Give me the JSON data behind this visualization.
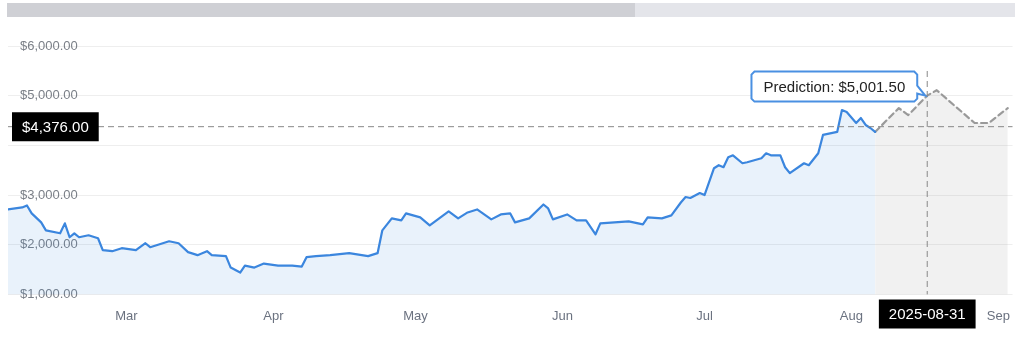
{
  "chart_data": {
    "type": "area",
    "xlim": [
      "2025-02-18",
      "2025-09-18"
    ],
    "xticks": [
      {
        "value": "2025-03-15",
        "label": "Mar"
      },
      {
        "value": "2025-04-15",
        "label": "Apr"
      },
      {
        "value": "2025-05-15",
        "label": "May"
      },
      {
        "value": "2025-06-15",
        "label": "Jun"
      },
      {
        "value": "2025-07-15",
        "label": "Jul"
      },
      {
        "value": "2025-08-15",
        "label": "Aug"
      },
      {
        "value": "2025-09-15",
        "label": "Sep"
      }
    ],
    "ylim": [
      1000,
      6000
    ],
    "yticks": [
      {
        "value": 1000,
        "label": "$1,000.00"
      },
      {
        "value": 2000,
        "label": "$2,000.00"
      },
      {
        "value": 3000,
        "label": "$3,000.00"
      },
      {
        "value": 4000,
        "label": null
      },
      {
        "value": 5000,
        "label": "$5,000.00"
      },
      {
        "value": 6000,
        "label": "$6,000.00"
      }
    ],
    "grid": "y",
    "legend": false,
    "marker": "none",
    "series": [
      {
        "color": "#3b86de",
        "line_style": "solid",
        "x": [
          "2025-02-18",
          "2025-02-21",
          "2025-02-22",
          "2025-02-23",
          "2025-02-25",
          "2025-02-26",
          "2025-03-01",
          "2025-03-02",
          "2025-03-03",
          "2025-03-04",
          "2025-03-05",
          "2025-03-07",
          "2025-03-09",
          "2025-03-10",
          "2025-03-12",
          "2025-03-14",
          "2025-03-17",
          "2025-03-19",
          "2025-03-20",
          "2025-03-24",
          "2025-03-26",
          "2025-03-28",
          "2025-03-30",
          "2025-04-01",
          "2025-04-02",
          "2025-04-05",
          "2025-04-06",
          "2025-04-08",
          "2025-04-09",
          "2025-04-11",
          "2025-04-13",
          "2025-04-16",
          "2025-04-19",
          "2025-04-21",
          "2025-04-22",
          "2025-04-24",
          "2025-04-27",
          "2025-05-01",
          "2025-05-05",
          "2025-05-07",
          "2025-05-08",
          "2025-05-10",
          "2025-05-12",
          "2025-05-13",
          "2025-05-16",
          "2025-05-18",
          "2025-05-20",
          "2025-05-22",
          "2025-05-24",
          "2025-05-26",
          "2025-05-28",
          "2025-05-31",
          "2025-06-02",
          "2025-06-04",
          "2025-06-05",
          "2025-06-08",
          "2025-06-11",
          "2025-06-12",
          "2025-06-13",
          "2025-06-16",
          "2025-06-18",
          "2025-06-20",
          "2025-06-22",
          "2025-06-23",
          "2025-06-26",
          "2025-06-29",
          "2025-07-02",
          "2025-07-03",
          "2025-07-06",
          "2025-07-08",
          "2025-07-10",
          "2025-07-11",
          "2025-07-12",
          "2025-07-14",
          "2025-07-15",
          "2025-07-17",
          "2025-07-18",
          "2025-07-19",
          "2025-07-20",
          "2025-07-21",
          "2025-07-23",
          "2025-07-24",
          "2025-07-27",
          "2025-07-28",
          "2025-07-29",
          "2025-07-31",
          "2025-08-01",
          "2025-08-02",
          "2025-08-05",
          "2025-08-06",
          "2025-08-08",
          "2025-08-09",
          "2025-08-11",
          "2025-08-12",
          "2025-08-13",
          "2025-08-14",
          "2025-08-16",
          "2025-08-17",
          "2025-08-18",
          "2025-08-19",
          "2025-08-20"
        ],
        "values": [
          2710,
          2750,
          2790,
          2630,
          2450,
          2290,
          2230,
          2430,
          2150,
          2230,
          2150,
          2190,
          2130,
          1890,
          1870,
          1930,
          1890,
          2030,
          1950,
          2070,
          2030,
          1850,
          1790,
          1870,
          1790,
          1770,
          1540,
          1440,
          1580,
          1540,
          1620,
          1580,
          1580,
          1560,
          1750,
          1770,
          1790,
          1830,
          1770,
          1830,
          2290,
          2530,
          2490,
          2630,
          2550,
          2390,
          2530,
          2670,
          2530,
          2650,
          2710,
          2510,
          2610,
          2630,
          2450,
          2530,
          2810,
          2730,
          2510,
          2610,
          2490,
          2490,
          2210,
          2430,
          2450,
          2470,
          2410,
          2550,
          2530,
          2590,
          2850,
          2960,
          2940,
          3040,
          3000,
          3540,
          3600,
          3560,
          3760,
          3800,
          3640,
          3660,
          3740,
          3840,
          3800,
          3800,
          3560,
          3440,
          3640,
          3600,
          3840,
          4210,
          4250,
          4270,
          4710,
          4670,
          4450,
          4550,
          4410,
          4350,
          4270
        ]
      },
      {
        "color": "#9a9a9a",
        "line_style": "dashed",
        "x": [
          "2025-08-20",
          "2025-08-25",
          "2025-08-27",
          "2025-08-31",
          "2025-09-02",
          "2025-09-10",
          "2025-09-13",
          "2025-09-17"
        ],
        "values": [
          4270,
          4750,
          4610,
          5001.5,
          5110,
          4450,
          4450,
          4750
        ]
      }
    ],
    "ref_lines": [
      {
        "axis": "y",
        "value": 4376,
        "label": "$4,376.00",
        "color": "#888888",
        "line_style": "dashed"
      },
      {
        "axis": "x",
        "value": "2025-08-31",
        "label": "2025-08-31",
        "color": "#888888",
        "line_style": "dashed"
      }
    ],
    "annotations": [
      {
        "text": "Prediction: $5,001.50",
        "x": "2025-08-31",
        "y": 5001.5
      }
    ]
  }
}
